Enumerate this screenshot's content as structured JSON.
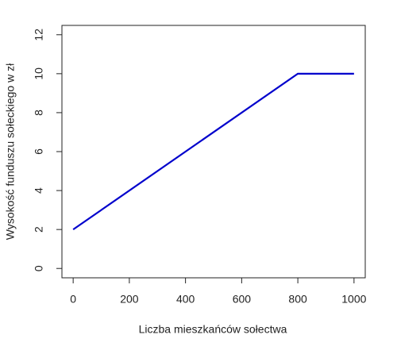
{
  "chart_data": {
    "type": "line",
    "xlabel": "Liczba mieszkańców sołectwa",
    "ylabel": "Wysokość funduszu sołeckiego w zł",
    "x": [
      0,
      800,
      1000
    ],
    "series": [
      {
        "color": "#0000cc",
        "values": [
          2,
          10,
          10
        ]
      }
    ],
    "xlim": [
      -40,
      1040
    ],
    "xticks": [
      0,
      200,
      400,
      600,
      800,
      1000
    ],
    "ylim": [
      -0.48,
      12.48
    ],
    "yticks": [
      0,
      2,
      4,
      6,
      8,
      10,
      12
    ]
  }
}
